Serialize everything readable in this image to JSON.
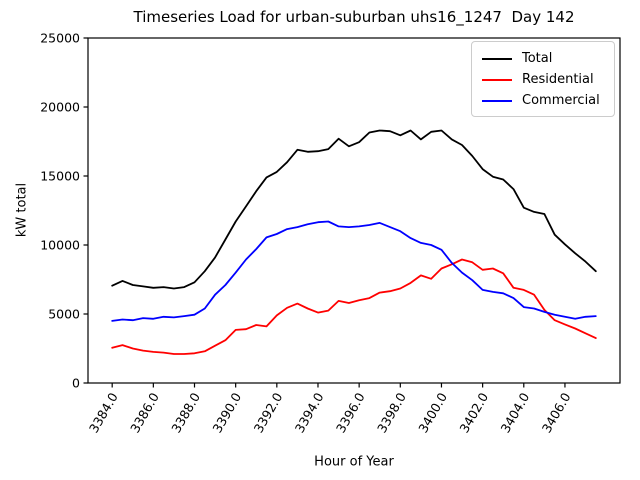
{
  "figure": {
    "title": "Timeseries Load for urban-suburban uhs16_1247  Day 142",
    "xlabel": "Hour of Year",
    "ylabel": "kW total",
    "background": "#ffffff"
  },
  "legend": {
    "position": "upper right",
    "border_color": "#cccccc"
  },
  "chart_data": {
    "type": "line",
    "title": "Timeseries Load for urban-suburban uhs16_1247  Day 142",
    "xlabel": "Hour of Year",
    "ylabel": "kW total",
    "grid": false,
    "legend_position": "upper right",
    "xlim": [
      3382.825,
      3408.675
    ],
    "ylim": [
      0,
      25000
    ],
    "xticks": [
      3384,
      3386,
      3388,
      3390,
      3392,
      3394,
      3396,
      3398,
      3400,
      3402,
      3404,
      3406
    ],
    "xtick_labels": [
      "3384.0",
      "3386.0",
      "3388.0",
      "3390.0",
      "3392.0",
      "3394.0",
      "3396.0",
      "3398.0",
      "3400.0",
      "3402.0",
      "3404.0",
      "3406.0"
    ],
    "yticks": [
      0,
      5000,
      10000,
      15000,
      20000,
      25000
    ],
    "ytick_labels": [
      "0",
      "5000",
      "10000",
      "15000",
      "20000",
      "25000"
    ],
    "x": [
      3384.0,
      3384.5,
      3385.0,
      3385.5,
      3386.0,
      3386.5,
      3387.0,
      3387.5,
      3388.0,
      3388.5,
      3389.0,
      3389.5,
      3390.0,
      3390.5,
      3391.0,
      3391.5,
      3392.0,
      3392.5,
      3393.0,
      3393.5,
      3394.0,
      3394.5,
      3395.0,
      3395.5,
      3396.0,
      3396.5,
      3397.0,
      3397.5,
      3398.0,
      3398.5,
      3399.0,
      3399.5,
      3400.0,
      3400.5,
      3401.0,
      3401.5,
      3402.0,
      3402.5,
      3403.0,
      3403.5,
      3404.0,
      3404.5,
      3405.0,
      3405.5,
      3406.0,
      3406.5,
      3407.0,
      3407.5
    ],
    "series": [
      {
        "name": "Total",
        "color": "#000000",
        "values": [
          7050,
          7400,
          7100,
          7000,
          6900,
          6950,
          6850,
          6950,
          7300,
          8100,
          9100,
          10400,
          11700,
          12800,
          13900,
          14900,
          15300,
          16000,
          16900,
          16750,
          16800,
          16950,
          17700,
          17150,
          17450,
          18150,
          18300,
          18250,
          17950,
          18300,
          17650,
          18200,
          18300,
          17650,
          17250,
          16450,
          15500,
          14950,
          14750,
          14050,
          12700,
          12400,
          12250,
          10750,
          10050,
          9400,
          8800,
          8100
        ]
      },
      {
        "name": "Residential",
        "color": "#ff0000",
        "values": [
          2550,
          2750,
          2500,
          2350,
          2250,
          2200,
          2100,
          2100,
          2150,
          2300,
          2700,
          3100,
          3850,
          3900,
          4200,
          4100,
          4900,
          5450,
          5750,
          5400,
          5100,
          5250,
          5950,
          5800,
          6000,
          6150,
          6550,
          6650,
          6850,
          7250,
          7800,
          7550,
          8300,
          8600,
          8950,
          8750,
          8200,
          8300,
          7950,
          6900,
          6750,
          6400,
          5300,
          4550,
          4250,
          3950,
          3600,
          3250
        ]
      },
      {
        "name": "Commercial",
        "color": "#0000ff",
        "values": [
          4500,
          4600,
          4550,
          4700,
          4650,
          4800,
          4750,
          4850,
          4950,
          5400,
          6400,
          7100,
          8000,
          8950,
          9700,
          10550,
          10800,
          11150,
          11300,
          11500,
          11650,
          11700,
          11350,
          11300,
          11350,
          11450,
          11600,
          11300,
          11000,
          10500,
          10150,
          10000,
          9650,
          8700,
          8000,
          7450,
          6750,
          6600,
          6500,
          6150,
          5500,
          5400,
          5150,
          4950,
          4800,
          4650,
          4800,
          4850
        ]
      }
    ]
  }
}
